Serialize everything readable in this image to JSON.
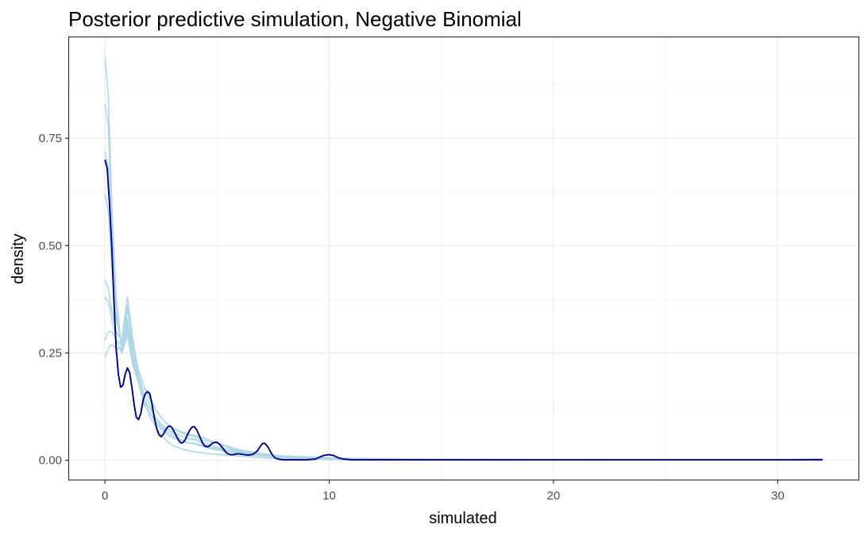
{
  "chart_data": {
    "type": "line",
    "title": "Posterior predictive simulation, Negative Binomial",
    "xlabel": "simulated",
    "ylabel": "density",
    "xlim": [
      -1.6,
      33.6
    ],
    "ylim": [
      -0.045,
      0.985
    ],
    "x_ticks": [
      0,
      10,
      20,
      30
    ],
    "x_tick_labels": [
      "0",
      "10",
      "20",
      "30"
    ],
    "y_ticks": [
      0,
      0.25,
      0.5,
      0.75
    ],
    "y_tick_labels": [
      "0.00",
      "0.25",
      "0.50",
      "0.75"
    ],
    "grid": true,
    "legend": "none",
    "colors": {
      "simulated": "#add8e6",
      "observed": "#00008b"
    },
    "x": [
      0,
      0.15,
      0.3,
      0.5,
      0.75,
      1,
      1.25,
      1.5,
      1.75,
      2,
      2.25,
      2.5,
      2.75,
      3,
      3.25,
      3.5,
      3.75,
      4,
      4.25,
      4.5,
      4.75,
      5,
      5.25,
      5.5,
      5.75,
      6,
      6.25,
      6.5,
      6.75,
      7,
      7.25,
      7.5,
      7.75,
      8,
      8.5,
      9,
      9.5,
      10,
      10.5,
      11,
      12,
      13,
      14,
      15,
      16,
      17,
      18,
      20,
      22,
      24,
      26,
      28,
      30,
      32
    ],
    "series": [
      {
        "role": "simulated",
        "values": [
          0.94,
          0.85,
          0.6,
          0.38,
          0.25,
          0.29,
          0.22,
          0.18,
          0.14,
          0.12,
          0.1,
          0.085,
          0.075,
          0.07,
          0.06,
          0.055,
          0.05,
          0.05,
          0.042,
          0.035,
          0.03,
          0.028,
          0.025,
          0.022,
          0.02,
          0.018,
          0.016,
          0.014,
          0.012,
          0.011,
          0.01,
          0.008,
          0.007,
          0.006,
          0.005,
          0.004,
          0.004,
          0.003,
          0.003,
          0.002,
          0.002,
          0.001,
          0.001,
          0.001,
          0.001,
          0.001,
          0.001,
          0.001,
          0.001,
          0.001,
          0.001,
          0.001,
          0.001,
          0.004
        ]
      },
      {
        "role": "simulated",
        "values": [
          0.42,
          0.4,
          0.35,
          0.3,
          0.28,
          0.38,
          0.28,
          0.2,
          0.15,
          0.13,
          0.1,
          0.08,
          0.07,
          0.065,
          0.06,
          0.055,
          0.05,
          0.048,
          0.045,
          0.04,
          0.035,
          0.03,
          0.028,
          0.026,
          0.024,
          0.02,
          0.018,
          0.016,
          0.015,
          0.014,
          0.012,
          0.011,
          0.01,
          0.009,
          0.008,
          0.007,
          0.006,
          0.005,
          0.004,
          0.004,
          0.003,
          0.002,
          0.002,
          0.002,
          0.001,
          0.002,
          0.001,
          0.001,
          0.001,
          0.001,
          0.001,
          0.001,
          0.001,
          0.001
        ]
      },
      {
        "role": "simulated",
        "values": [
          0.83,
          0.78,
          0.55,
          0.35,
          0.26,
          0.33,
          0.24,
          0.18,
          0.13,
          0.11,
          0.09,
          0.075,
          0.06,
          0.055,
          0.05,
          0.045,
          0.04,
          0.038,
          0.034,
          0.03,
          0.027,
          0.024,
          0.022,
          0.02,
          0.018,
          0.016,
          0.014,
          0.012,
          0.011,
          0.01,
          0.009,
          0.008,
          0.007,
          0.006,
          0.005,
          0.004,
          0.004,
          0.003,
          0.003,
          0.003,
          0.002,
          0.002,
          0.001,
          0.001,
          0.001,
          0.001,
          0.001,
          0.001,
          0.001,
          0.001,
          0.001,
          0.001,
          0.001,
          0.001
        ]
      },
      {
        "role": "simulated",
        "values": [
          0.28,
          0.3,
          0.3,
          0.28,
          0.27,
          0.35,
          0.27,
          0.21,
          0.17,
          0.15,
          0.12,
          0.1,
          0.085,
          0.075,
          0.068,
          0.062,
          0.058,
          0.055,
          0.05,
          0.046,
          0.042,
          0.038,
          0.034,
          0.03,
          0.026,
          0.022,
          0.02,
          0.018,
          0.016,
          0.014,
          0.012,
          0.011,
          0.01,
          0.009,
          0.008,
          0.007,
          0.006,
          0.005,
          0.005,
          0.004,
          0.003,
          0.003,
          0.002,
          0.002,
          0.002,
          0.001,
          0.001,
          0.001,
          0.001,
          0.001,
          0.001,
          0.001,
          0.001,
          0.001
        ]
      },
      {
        "role": "simulated",
        "values": [
          0.62,
          0.58,
          0.45,
          0.33,
          0.27,
          0.36,
          0.26,
          0.19,
          0.14,
          0.12,
          0.1,
          0.08,
          0.065,
          0.06,
          0.052,
          0.046,
          0.04,
          0.038,
          0.035,
          0.032,
          0.028,
          0.025,
          0.022,
          0.02,
          0.018,
          0.016,
          0.015,
          0.013,
          0.012,
          0.01,
          0.009,
          0.008,
          0.007,
          0.006,
          0.005,
          0.004,
          0.004,
          0.003,
          0.003,
          0.003,
          0.002,
          0.002,
          0.001,
          0.002,
          0.001,
          0.001,
          0.001,
          0.001,
          0.001,
          0.001,
          0.001,
          0.001,
          0.001,
          0.001
        ]
      },
      {
        "role": "simulated",
        "values": [
          0.24,
          0.26,
          0.27,
          0.26,
          0.26,
          0.32,
          0.26,
          0.21,
          0.17,
          0.14,
          0.12,
          0.1,
          0.085,
          0.075,
          0.07,
          0.065,
          0.06,
          0.058,
          0.055,
          0.05,
          0.045,
          0.04,
          0.036,
          0.032,
          0.028,
          0.025,
          0.022,
          0.02,
          0.018,
          0.016,
          0.014,
          0.012,
          0.011,
          0.01,
          0.009,
          0.008,
          0.007,
          0.006,
          0.005,
          0.005,
          0.004,
          0.003,
          0.003,
          0.002,
          0.002,
          0.002,
          0.002,
          0.001,
          0.002,
          0.001,
          0.001,
          0.001,
          0.001,
          0.001
        ]
      },
      {
        "role": "simulated",
        "values": [
          0.38,
          0.37,
          0.33,
          0.28,
          0.25,
          0.3,
          0.24,
          0.19,
          0.14,
          0.1,
          0.08,
          0.06,
          0.045,
          0.035,
          0.03,
          0.025,
          0.022,
          0.02,
          0.018,
          0.016,
          0.015,
          0.014,
          0.013,
          0.012,
          0.011,
          0.01,
          0.009,
          0.008,
          0.007,
          0.006,
          0.005,
          0.005,
          0.004,
          0.004,
          0.003,
          0.003,
          0.003,
          0.002,
          0.002,
          0.002,
          0.001,
          0.001,
          0.001,
          0.001,
          0.001,
          0.001,
          0.001,
          0.001,
          0.001,
          0.001,
          0.001,
          0.001,
          0.001,
          0.001
        ]
      },
      {
        "role": "simulated",
        "values": [
          0.72,
          0.68,
          0.5,
          0.34,
          0.26,
          0.31,
          0.23,
          0.18,
          0.13,
          0.11,
          0.09,
          0.072,
          0.06,
          0.054,
          0.048,
          0.044,
          0.04,
          0.04,
          0.036,
          0.032,
          0.028,
          0.025,
          0.023,
          0.02,
          0.018,
          0.016,
          0.015,
          0.013,
          0.012,
          0.011,
          0.01,
          0.009,
          0.008,
          0.007,
          0.006,
          0.005,
          0.005,
          0.004,
          0.004,
          0.003,
          0.003,
          0.002,
          0.002,
          0.001,
          0.001,
          0.001,
          0.001,
          0.001,
          0.001,
          0.001,
          0.001,
          0.001,
          0.001,
          0.001
        ]
      }
    ],
    "observed": {
      "x": [
        0,
        0.1,
        0.2,
        0.3,
        0.4,
        0.5,
        0.6,
        0.7,
        0.8,
        0.9,
        1,
        1.1,
        1.2,
        1.3,
        1.4,
        1.5,
        1.6,
        1.7,
        1.8,
        1.9,
        2,
        2.1,
        2.2,
        2.3,
        2.4,
        2.5,
        2.6,
        2.7,
        2.8,
        2.9,
        3,
        3.1,
        3.2,
        3.3,
        3.4,
        3.5,
        3.6,
        3.7,
        3.8,
        3.9,
        4,
        4.1,
        4.2,
        4.3,
        4.4,
        4.5,
        4.6,
        4.7,
        4.8,
        4.9,
        5,
        5.1,
        5.2,
        5.3,
        5.4,
        5.5,
        5.6,
        5.7,
        5.8,
        5.9,
        6,
        6.2,
        6.4,
        6.6,
        6.8,
        6.9,
        7,
        7.1,
        7.2,
        7.3,
        7.4,
        7.5,
        7.6,
        7.8,
        8,
        8.5,
        9,
        9.4,
        9.6,
        9.8,
        10,
        10.2,
        10.4,
        10.6,
        11,
        12,
        14,
        16,
        18,
        20,
        22,
        24,
        26,
        28,
        30,
        32
      ],
      "values": [
        0.7,
        0.68,
        0.6,
        0.5,
        0.37,
        0.26,
        0.2,
        0.17,
        0.175,
        0.2,
        0.215,
        0.205,
        0.17,
        0.13,
        0.1,
        0.095,
        0.11,
        0.14,
        0.155,
        0.16,
        0.155,
        0.13,
        0.1,
        0.075,
        0.06,
        0.055,
        0.06,
        0.07,
        0.078,
        0.08,
        0.075,
        0.065,
        0.055,
        0.045,
        0.04,
        0.042,
        0.05,
        0.062,
        0.072,
        0.078,
        0.078,
        0.07,
        0.058,
        0.046,
        0.036,
        0.032,
        0.032,
        0.035,
        0.04,
        0.042,
        0.042,
        0.038,
        0.032,
        0.025,
        0.018,
        0.015,
        0.013,
        0.013,
        0.014,
        0.015,
        0.015,
        0.013,
        0.012,
        0.014,
        0.022,
        0.03,
        0.038,
        0.04,
        0.036,
        0.028,
        0.018,
        0.01,
        0.005,
        0.002,
        0.001,
        0.001,
        0.001,
        0.003,
        0.008,
        0.012,
        0.013,
        0.011,
        0.006,
        0.003,
        0.001,
        0.001,
        0.001,
        0.001,
        0.001,
        0.001,
        0.001,
        0.001,
        0.001,
        0.001,
        0.001,
        0.001
      ]
    }
  }
}
